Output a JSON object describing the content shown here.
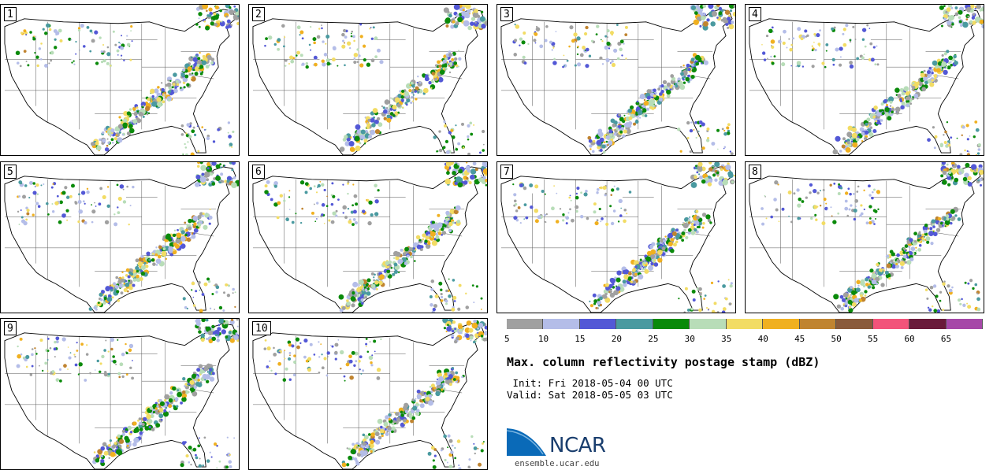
{
  "stamps": [
    {
      "number": "1"
    },
    {
      "number": "2"
    },
    {
      "number": "3"
    },
    {
      "number": "4"
    },
    {
      "number": "5"
    },
    {
      "number": "6"
    },
    {
      "number": "7"
    },
    {
      "number": "8"
    },
    {
      "number": "9"
    },
    {
      "number": "10"
    }
  ],
  "legend": {
    "ticks": [
      "5",
      "10",
      "15",
      "20",
      "25",
      "30",
      "35",
      "40",
      "45",
      "50",
      "55",
      "60",
      "65"
    ],
    "colors": [
      "#a0a0a0",
      "#b4bde8",
      "#5358d6",
      "#4a9aa0",
      "#0a8a0a",
      "#b8ddb8",
      "#f2dc64",
      "#f0b020",
      "#c08430",
      "#8a5a3a",
      "#f2547a",
      "#6a1a3a",
      "#a648a8"
    ]
  },
  "title": "Max. column reflectivity postage stamp (dBZ)",
  "init": " Init: Fri 2018-05-04 00 UTC",
  "valid": "Valid: Sat 2018-05-05 03 UTC",
  "logo": {
    "text": "NCAR",
    "url": "ensemble.ucar.edu"
  }
}
